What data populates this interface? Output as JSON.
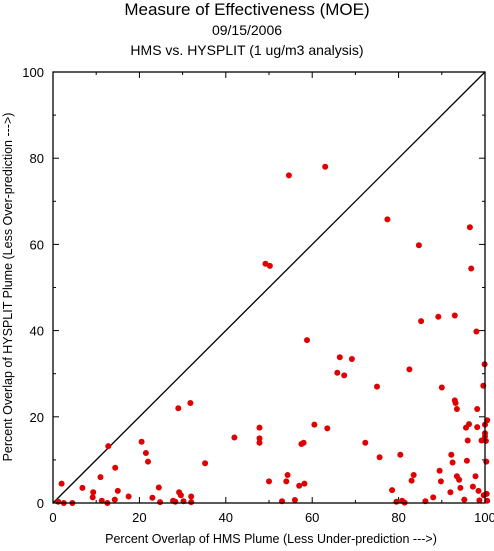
{
  "chart_data": {
    "type": "scatter",
    "title": "Measure of Effectiveness (MOE)",
    "subtitle": "09/15/2006",
    "subtitle2": "HMS vs. HYSPLIT  (1 ug/m3 analysis)",
    "xlabel": "Percent Overlap of HMS Plume (Less Under-prediction --->)",
    "ylabel": "Percent Overlap of HYSPLIT Plume (Less Over-prediction --->)",
    "xlim": [
      0,
      100
    ],
    "ylim": [
      0,
      100
    ],
    "xticks": [
      "0",
      "20",
      "40",
      "60",
      "80",
      "100"
    ],
    "yticks": [
      "0",
      "20",
      "40",
      "60",
      "80",
      "100"
    ],
    "reference_line": "1:1 diagonal",
    "point_color": "#e00000",
    "points": [
      [
        2,
        4.5
      ],
      [
        1.2,
        0.3
      ],
      [
        2.5,
        0
      ],
      [
        4.5,
        0
      ],
      [
        6.8,
        3.5
      ],
      [
        9.3,
        2.5
      ],
      [
        9.2,
        1.3
      ],
      [
        11,
        6
      ],
      [
        11.3,
        0.5
      ],
      [
        12.6,
        0
      ],
      [
        12.8,
        13.2
      ],
      [
        14.3,
        0.8
      ],
      [
        14.4,
        8.2
      ],
      [
        15,
        2.8
      ],
      [
        17.5,
        1.5
      ],
      [
        20.5,
        14.2
      ],
      [
        21.5,
        11.6
      ],
      [
        22,
        9.6
      ],
      [
        23,
        1.2
      ],
      [
        24.5,
        3.6
      ],
      [
        24.8,
        0.2
      ],
      [
        27.8,
        0.5
      ],
      [
        28.3,
        0.3
      ],
      [
        29,
        22
      ],
      [
        29.2,
        2.5
      ],
      [
        29.6,
        1.8
      ],
      [
        30.2,
        0.4
      ],
      [
        31.8,
        23.2
      ],
      [
        32,
        1.5
      ],
      [
        32,
        0.2
      ],
      [
        35.2,
        9.2
      ],
      [
        42,
        15.2
      ],
      [
        47.8,
        17.5
      ],
      [
        47.8,
        15
      ],
      [
        47.8,
        14
      ],
      [
        49.2,
        55.5
      ],
      [
        50.2,
        55
      ],
      [
        50,
        5
      ],
      [
        53,
        0.4
      ],
      [
        54,
        5
      ],
      [
        54.3,
        6.5
      ],
      [
        54.6,
        76
      ],
      [
        56,
        0.7
      ],
      [
        57,
        4
      ],
      [
        57.5,
        13.7
      ],
      [
        58,
        14
      ],
      [
        58.2,
        4.5
      ],
      [
        58.8,
        37.8
      ],
      [
        60.5,
        18.2
      ],
      [
        63,
        78
      ],
      [
        63.5,
        17.3
      ],
      [
        65.8,
        30.2
      ],
      [
        66.4,
        33.8
      ],
      [
        67.4,
        29.6
      ],
      [
        69.2,
        33.4
      ],
      [
        72.3,
        14
      ],
      [
        75,
        27
      ],
      [
        75.6,
        10.6
      ],
      [
        77.4,
        65.8
      ],
      [
        78.5,
        3
      ],
      [
        79.5,
        0.3
      ],
      [
        80.4,
        11.2
      ],
      [
        80.8,
        0.5
      ],
      [
        81.4,
        0.1
      ],
      [
        82.5,
        31
      ],
      [
        83,
        5.2
      ],
      [
        83.5,
        6.5
      ],
      [
        84.7,
        59.8
      ],
      [
        85.2,
        42.2
      ],
      [
        86.2,
        0.4
      ],
      [
        88,
        1.3
      ],
      [
        89.2,
        43.2
      ],
      [
        89.5,
        7.5
      ],
      [
        89.8,
        5
      ],
      [
        90,
        26.8
      ],
      [
        92,
        2.5
      ],
      [
        92.2,
        11.2
      ],
      [
        92.5,
        9.4
      ],
      [
        93,
        23.8
      ],
      [
        93,
        43.5
      ],
      [
        93.2,
        23.2
      ],
      [
        93.5,
        21.8
      ],
      [
        93.5,
        6.2
      ],
      [
        94,
        5.4
      ],
      [
        94.3,
        3.5
      ],
      [
        95.2,
        0.8
      ],
      [
        95.6,
        17.5
      ],
      [
        95.8,
        9.8
      ],
      [
        96,
        14.5
      ],
      [
        96.3,
        18.3
      ],
      [
        96.5,
        64
      ],
      [
        96.8,
        54.4
      ],
      [
        97.2,
        3.8
      ],
      [
        97.8,
        6.2
      ],
      [
        98,
        39.8
      ],
      [
        98.2,
        21.8
      ],
      [
        98.2,
        17.6
      ],
      [
        98.5,
        2.8
      ],
      [
        98.7,
        0.6
      ],
      [
        99.2,
        14.5
      ],
      [
        99.6,
        27.2
      ],
      [
        99.7,
        1.8
      ],
      [
        99.9,
        32.2
      ],
      [
        100,
        16.2
      ],
      [
        100,
        18.2
      ],
      [
        100,
        15.5
      ],
      [
        100.2,
        14.4
      ],
      [
        100.3,
        9.6
      ],
      [
        100.4,
        2.1
      ],
      [
        100.5,
        0.5
      ],
      [
        100.5,
        19.2
      ]
    ]
  }
}
